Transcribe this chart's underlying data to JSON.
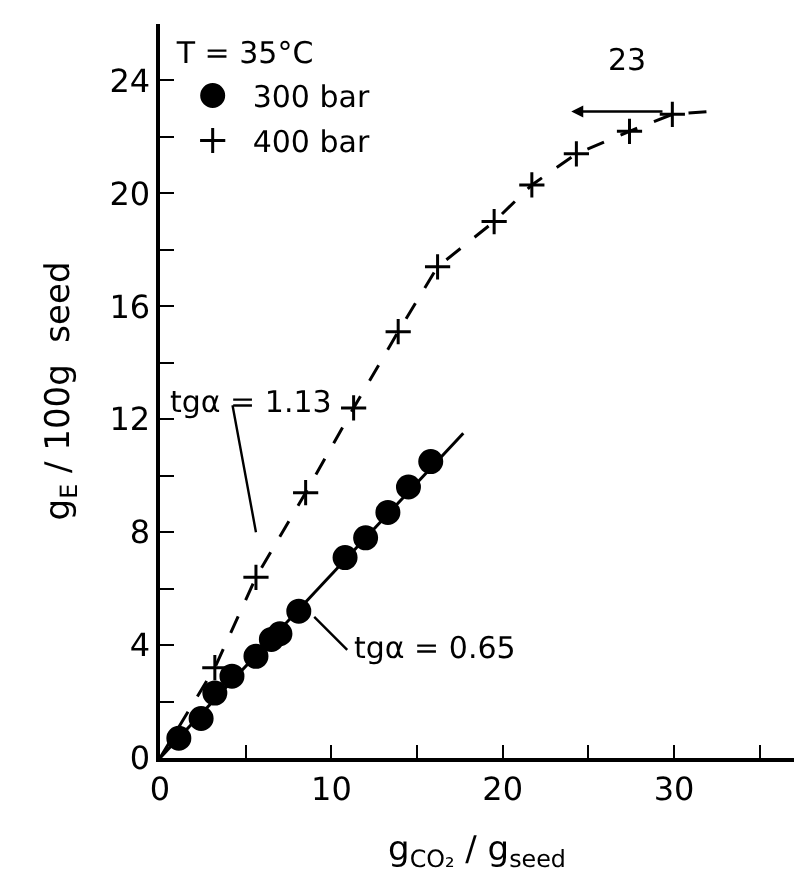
{
  "chart_data": {
    "type": "scatter",
    "xlabel": "g$_{CO₂}$ / g$_{seed}$",
    "ylabel": "g$_{E}$ / 100g  seed",
    "legend_title": "T = 35°C",
    "series": [
      {
        "name": "300 bar",
        "marker": "circle",
        "color": "#000000",
        "x": [
          1.1,
          2.4,
          3.2,
          4.2,
          5.6,
          6.5,
          7.0,
          8.1,
          10.8,
          12.0,
          13.3,
          14.5,
          15.8
        ],
        "values": [
          0.7,
          1.4,
          2.3,
          2.9,
          3.6,
          4.2,
          4.4,
          5.2,
          7.1,
          7.8,
          8.7,
          9.6,
          10.5
        ]
      },
      {
        "name": "400 bar",
        "marker": "cross",
        "color": "#000000",
        "x": [
          3.2,
          5.6,
          8.5,
          11.3,
          13.9,
          16.2,
          19.5,
          21.7,
          24.3,
          27.4,
          29.9
        ],
        "values": [
          3.2,
          6.4,
          9.4,
          12.4,
          15.1,
          17.4,
          19.0,
          20.3,
          21.4,
          22.2,
          22.8
        ]
      },
      {
        "type": "line",
        "line_style": "dashed",
        "color": "#000000",
        "x": [
          0,
          3.2,
          5.6,
          8.5,
          11.3,
          13.9,
          16.2,
          19.5,
          21.7,
          24.3,
          27.4,
          29.9,
          32
        ],
        "values": [
          0,
          3.2,
          6.4,
          9.4,
          12.4,
          15.1,
          17.4,
          19.0,
          20.3,
          21.4,
          22.2,
          22.8,
          22.9
        ]
      },
      {
        "type": "line",
        "line_style": "solid",
        "color": "#000000",
        "x": [
          0,
          17.7
        ],
        "values": [
          0,
          11.5
        ]
      }
    ],
    "annotations": [
      "tgα = 1.13",
      "tgα = 0.65",
      "23"
    ],
    "xlim": [
      0,
      37
    ],
    "ylim": [
      0,
      26
    ],
    "xticks": [
      0,
      {
        "value": 5,
        "label": null
      },
      10,
      {
        "value": 15,
        "label": null
      },
      20,
      {
        "value": 25,
        "label": null
      },
      30,
      {
        "value": 35,
        "label": null
      }
    ],
    "yticks": [
      0,
      {
        "value": 2,
        "label": null
      },
      4,
      {
        "value": 6,
        "label": null
      },
      8,
      {
        "value": 10,
        "label": null
      },
      12,
      {
        "value": 14,
        "label": null
      },
      16,
      {
        "value": 18,
        "label": null
      },
      20,
      {
        "value": 22,
        "label": null
      },
      24
    ],
    "legend": "top left"
  }
}
